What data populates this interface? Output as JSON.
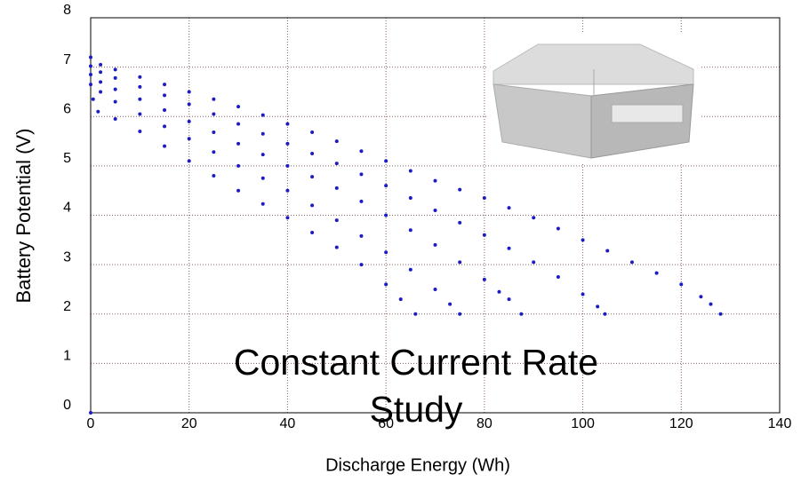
{
  "chart_data": {
    "type": "scatter",
    "xlabel": "Discharge Energy (Wh)",
    "ylabel": "Battery Potential (V)",
    "annotation": "Constant Current Rate Study",
    "xlim": [
      0,
      140
    ],
    "xticks": [
      0,
      20,
      40,
      60,
      80,
      100,
      120,
      140
    ],
    "ylim": [
      0,
      8
    ],
    "yticks": [
      0,
      1,
      2,
      3,
      4,
      5,
      6,
      7,
      8
    ],
    "grid": true,
    "series": [
      {
        "color": "#1c1cc4",
        "x": [
          0,
          2,
          5,
          10,
          15,
          20,
          25,
          30,
          35,
          40,
          45,
          50,
          55,
          60,
          65,
          70,
          75,
          80,
          85,
          90,
          95,
          100,
          105,
          110,
          115,
          120,
          124,
          126,
          128
        ],
        "values": [
          7.2,
          7.05,
          6.95,
          6.8,
          6.65,
          6.5,
          6.35,
          6.2,
          6.03,
          5.85,
          5.68,
          5.5,
          5.3,
          5.1,
          4.9,
          4.7,
          4.52,
          4.35,
          4.15,
          3.95,
          3.73,
          3.5,
          3.28,
          3.05,
          2.83,
          2.6,
          2.35,
          2.2,
          2.0
        ]
      },
      {
        "color": "#1c1cc4",
        "x": [
          0,
          2,
          5,
          10,
          15,
          20,
          25,
          30,
          35,
          40,
          45,
          50,
          55,
          60,
          65,
          70,
          75,
          80,
          85,
          90,
          95,
          100,
          103,
          104.5
        ],
        "values": [
          7.02,
          6.9,
          6.78,
          6.6,
          6.43,
          6.25,
          6.05,
          5.85,
          5.65,
          5.45,
          5.25,
          5.05,
          4.83,
          4.6,
          4.35,
          4.1,
          3.85,
          3.6,
          3.33,
          3.05,
          2.75,
          2.4,
          2.15,
          2.0
        ]
      },
      {
        "color": "#1c1cc4",
        "x": [
          0,
          2,
          5,
          10,
          15,
          20,
          25,
          30,
          35,
          40,
          45,
          50,
          55,
          60,
          65,
          70,
          75,
          80,
          83,
          85,
          87.5
        ],
        "values": [
          6.85,
          6.7,
          6.55,
          6.35,
          6.13,
          5.9,
          5.68,
          5.45,
          5.23,
          5.0,
          4.78,
          4.55,
          4.28,
          4.0,
          3.7,
          3.4,
          3.05,
          2.7,
          2.45,
          2.3,
          2.0
        ]
      },
      {
        "color": "#1c1cc4",
        "x": [
          0,
          2,
          5,
          10,
          15,
          20,
          25,
          30,
          35,
          40,
          45,
          50,
          55,
          60,
          65,
          70,
          73,
          75
        ],
        "values": [
          6.65,
          6.5,
          6.3,
          6.05,
          5.8,
          5.55,
          5.28,
          5.0,
          4.75,
          4.5,
          4.2,
          3.9,
          3.58,
          3.25,
          2.9,
          2.5,
          2.2,
          2.0
        ]
      },
      {
        "color": "#1c1cc4",
        "x": [
          0.5,
          1.5,
          5,
          10,
          15,
          20,
          25,
          30,
          35,
          40,
          45,
          50,
          55,
          60,
          63,
          66
        ],
        "values": [
          6.35,
          6.1,
          5.95,
          5.7,
          5.4,
          5.1,
          4.8,
          4.5,
          4.23,
          3.95,
          3.65,
          3.35,
          3.0,
          2.6,
          2.3,
          2.0
        ]
      },
      {
        "color": "#1c1cc4",
        "x": [
          0
        ],
        "values": [
          0
        ]
      }
    ]
  }
}
